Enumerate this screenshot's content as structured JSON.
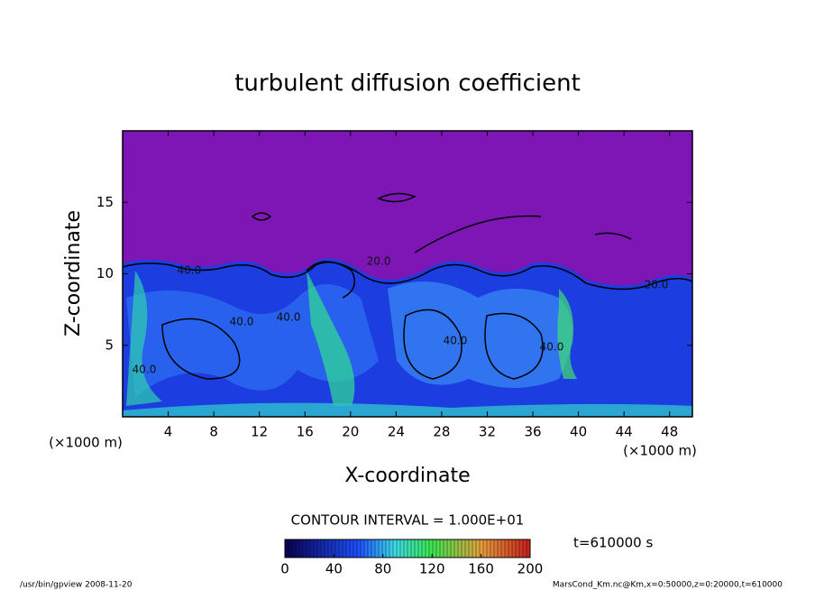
{
  "chart_data": {
    "type": "contour",
    "title": "turbulent diffusion coefficient",
    "xlabel": "X-coordinate",
    "ylabel": "Z-coordinate",
    "x_unit": "(×1000 m)",
    "y_unit": "(×1000 m)",
    "xlim": [
      0,
      50
    ],
    "xticks": [
      4,
      8,
      12,
      16,
      20,
      24,
      28,
      32,
      36,
      40,
      44,
      48
    ],
    "ylim": [
      0,
      20
    ],
    "yticks": [
      5,
      10,
      15
    ],
    "contour_interval": "CONTOUR INTERVAL = 1.000E+01",
    "contour_labels": [
      "40.0",
      "20.0",
      "40.0",
      "40.0",
      "40.0",
      "20.0",
      "40.0",
      "40.0"
    ],
    "clim": [
      0,
      200
    ],
    "cticks": [
      0,
      40,
      80,
      120,
      160,
      200
    ],
    "time": "t=610000 s",
    "footer_left": "/usr/bin/gpview   2008-11-20",
    "footer_right": "MarsCond_Km.nc@Km,x=0:50000,z=0:20000,t=610000"
  }
}
